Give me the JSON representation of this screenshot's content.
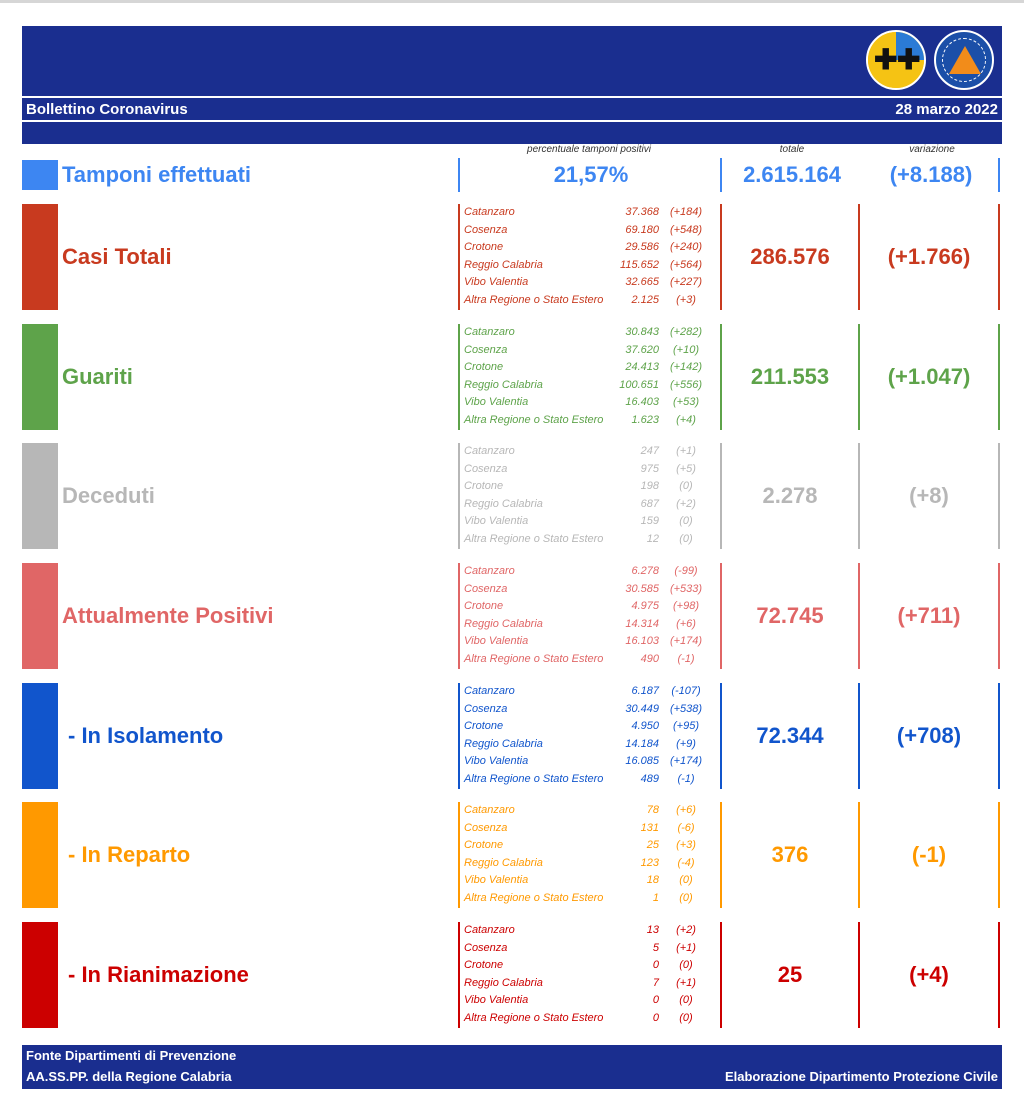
{
  "header": {
    "title": "Bollettino Coronavirus",
    "date": "28 marzo 2022",
    "logos": [
      "regione-calabria-logo",
      "protezione-civile-logo"
    ]
  },
  "columns": {
    "percent_label": "percentuale tamponi positivi",
    "total_label": "totale",
    "variation_label": "variazione"
  },
  "tamponi": {
    "label": "Tamponi effettuati",
    "percent": "21,57%",
    "total": "2.615.164",
    "variation": "(+8.188)",
    "color": "#3d86f2"
  },
  "categories": [
    {
      "label": "Casi Totali",
      "color": "#c83a1f",
      "total": "286.576",
      "variation": "(+1.766)",
      "provinces": [
        {
          "name": "Catanzaro",
          "value": "37.368",
          "delta": "(+184)"
        },
        {
          "name": "Cosenza",
          "value": "69.180",
          "delta": "(+548)"
        },
        {
          "name": "Crotone",
          "value": "29.586",
          "delta": "(+240)"
        },
        {
          "name": "Reggio Calabria",
          "value": "115.652",
          "delta": "(+564)"
        },
        {
          "name": "Vibo Valentia",
          "value": "32.665",
          "delta": "(+227)"
        },
        {
          "name": "Altra Regione o Stato Estero",
          "value": "2.125",
          "delta": "(+3)"
        }
      ]
    },
    {
      "label": "Guariti",
      "color": "#5ea34a",
      "total": "211.553",
      "variation": "(+1.047)",
      "provinces": [
        {
          "name": "Catanzaro",
          "value": "30.843",
          "delta": "(+282)"
        },
        {
          "name": "Cosenza",
          "value": "37.620",
          "delta": "(+10)"
        },
        {
          "name": "Crotone",
          "value": "24.413",
          "delta": "(+142)"
        },
        {
          "name": "Reggio Calabria",
          "value": "100.651",
          "delta": "(+556)"
        },
        {
          "name": "Vibo Valentia",
          "value": "16.403",
          "delta": "(+53)"
        },
        {
          "name": "Altra Regione o Stato Estero",
          "value": "1.623",
          "delta": "(+4)"
        }
      ]
    },
    {
      "label": "Deceduti",
      "color": "#b7b7b7",
      "total": "2.278",
      "variation": "(+8)",
      "provinces": [
        {
          "name": "Catanzaro",
          "value": "247",
          "delta": "(+1)"
        },
        {
          "name": "Cosenza",
          "value": "975",
          "delta": "(+5)"
        },
        {
          "name": "Crotone",
          "value": "198",
          "delta": "(0)"
        },
        {
          "name": "Reggio Calabria",
          "value": "687",
          "delta": "(+2)"
        },
        {
          "name": "Vibo Valentia",
          "value": "159",
          "delta": "(0)"
        },
        {
          "name": "Altra Regione o Stato Estero",
          "value": "12",
          "delta": "(0)"
        }
      ]
    },
    {
      "label": "Attualmente Positivi",
      "color": "#e06666",
      "total": "72.745",
      "variation": "(+711)",
      "provinces": [
        {
          "name": "Catanzaro",
          "value": "6.278",
          "delta": "(-99)"
        },
        {
          "name": "Cosenza",
          "value": "30.585",
          "delta": "(+533)"
        },
        {
          "name": "Crotone",
          "value": "4.975",
          "delta": "(+98)"
        },
        {
          "name": "Reggio Calabria",
          "value": "14.314",
          "delta": "(+6)"
        },
        {
          "name": "Vibo Valentia",
          "value": "16.103",
          "delta": "(+174)"
        },
        {
          "name": "Altra Regione o Stato Estero",
          "value": "490",
          "delta": "(-1)"
        }
      ]
    },
    {
      "label": "- In Isolamento",
      "color": "#1155cc",
      "total": "72.344",
      "variation": "(+708)",
      "provinces": [
        {
          "name": "Catanzaro",
          "value": "6.187",
          "delta": "(-107)"
        },
        {
          "name": "Cosenza",
          "value": "30.449",
          "delta": "(+538)"
        },
        {
          "name": "Crotone",
          "value": "4.950",
          "delta": "(+95)"
        },
        {
          "name": "Reggio Calabria",
          "value": "14.184",
          "delta": "(+9)"
        },
        {
          "name": "Vibo Valentia",
          "value": "16.085",
          "delta": "(+174)"
        },
        {
          "name": "Altra Regione o Stato Estero",
          "value": "489",
          "delta": "(-1)"
        }
      ]
    },
    {
      "label": "- In Reparto",
      "color": "#ff9900",
      "total": "376",
      "variation": "(-1)",
      "provinces": [
        {
          "name": "Catanzaro",
          "value": "78",
          "delta": "(+6)"
        },
        {
          "name": "Cosenza",
          "value": "131",
          "delta": "(-6)"
        },
        {
          "name": "Crotone",
          "value": "25",
          "delta": "(+3)"
        },
        {
          "name": "Reggio Calabria",
          "value": "123",
          "delta": "(-4)"
        },
        {
          "name": "Vibo Valentia",
          "value": "18",
          "delta": "(0)"
        },
        {
          "name": "Altra Regione o Stato Estero",
          "value": "1",
          "delta": "(0)"
        }
      ]
    },
    {
      "label": "- In Rianimazione",
      "color": "#cc0000",
      "total": "25",
      "variation": "(+4)",
      "provinces": [
        {
          "name": "Catanzaro",
          "value": "13",
          "delta": "(+2)"
        },
        {
          "name": "Cosenza",
          "value": "5",
          "delta": "(+1)"
        },
        {
          "name": "Crotone",
          "value": "0",
          "delta": "(0)"
        },
        {
          "name": "Reggio Calabria",
          "value": "7",
          "delta": "(+1)"
        },
        {
          "name": "Vibo Valentia",
          "value": "0",
          "delta": "(0)"
        },
        {
          "name": "Altra Regione o Stato Estero",
          "value": "0",
          "delta": "(0)"
        }
      ]
    }
  ],
  "footer": {
    "line1": "Fonte Dipartimenti di Prevenzione",
    "line2": "AA.SS.PP.  della Regione Calabria",
    "credit": "Elaborazione Dipartimento Protezione Civile"
  }
}
